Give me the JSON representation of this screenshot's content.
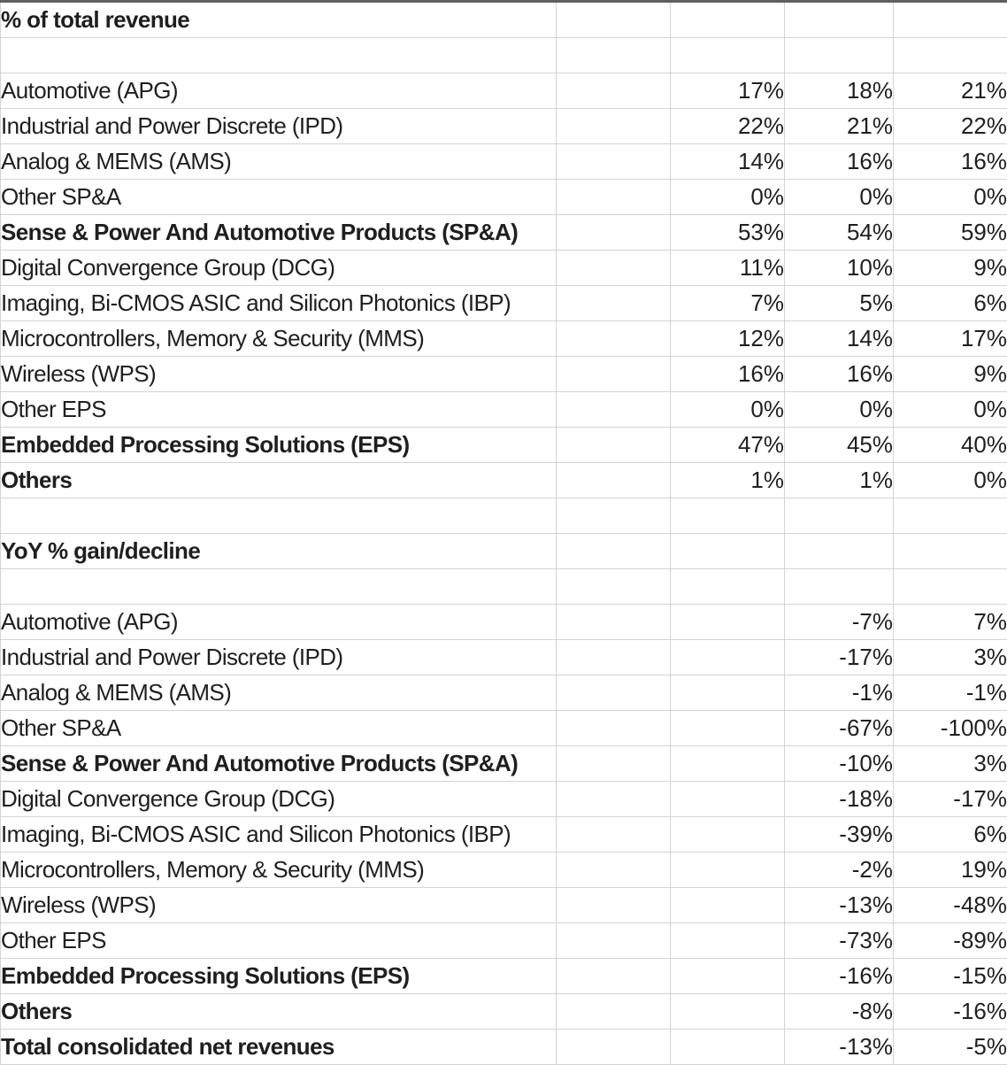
{
  "colors": {
    "text_black": "#1f1f1f",
    "negative_red": "#e5342b",
    "gridline_gray": "#d4d4d4",
    "top_edge_gray": "#5f5f5f",
    "background": "#ffffff"
  },
  "table": {
    "rows": [
      {
        "label": "% of total revenue",
        "bold": true,
        "red": false,
        "values": [
          "",
          "",
          ""
        ]
      },
      {
        "label": "",
        "bold": false,
        "red": false,
        "values": [
          "",
          "",
          ""
        ]
      },
      {
        "label": "Automotive (APG)",
        "bold": false,
        "red": false,
        "values": [
          "17%",
          "18%",
          "21%"
        ]
      },
      {
        "label": "Industrial and Power Discrete (IPD)",
        "bold": false,
        "red": false,
        "values": [
          "22%",
          "21%",
          "22%"
        ]
      },
      {
        "label": "Analog & MEMS (AMS)",
        "bold": false,
        "red": false,
        "values": [
          "14%",
          "16%",
          "16%"
        ]
      },
      {
        "label": "Other SP&A",
        "bold": false,
        "red": false,
        "values": [
          "0%",
          "0%",
          "0%"
        ]
      },
      {
        "label": "Sense & Power And Automotive Products (SP&A)",
        "bold": true,
        "red": false,
        "values": [
          "53%",
          "54%",
          "59%"
        ]
      },
      {
        "label": "Digital Convergence Group (DCG)",
        "bold": false,
        "red": false,
        "values": [
          "11%",
          "10%",
          "9%"
        ]
      },
      {
        "label": "Imaging, Bi-CMOS ASIC and Silicon Photonics (IBP)",
        "bold": false,
        "red": false,
        "values": [
          "7%",
          "5%",
          "6%"
        ]
      },
      {
        "label": "Microcontrollers, Memory & Security (MMS)",
        "bold": false,
        "red": false,
        "values": [
          "12%",
          "14%",
          "17%"
        ]
      },
      {
        "label": "Wireless (WPS)",
        "bold": false,
        "red": false,
        "values": [
          "16%",
          "16%",
          "9%"
        ]
      },
      {
        "label": "Other EPS",
        "bold": false,
        "red": false,
        "values": [
          "0%",
          "0%",
          "0%"
        ]
      },
      {
        "label": "Embedded Processing Solutions (EPS)",
        "bold": true,
        "red": false,
        "values": [
          "47%",
          "45%",
          "40%"
        ]
      },
      {
        "label": "Others",
        "bold": true,
        "red": false,
        "values": [
          "1%",
          "1%",
          "0%"
        ]
      },
      {
        "label": "",
        "bold": false,
        "red": false,
        "values": [
          "",
          "",
          ""
        ]
      },
      {
        "label": "YoY % gain/decline",
        "bold": true,
        "red": false,
        "values": [
          "",
          "",
          ""
        ]
      },
      {
        "label": "",
        "bold": false,
        "red": false,
        "values": [
          "",
          "",
          ""
        ]
      },
      {
        "label": "Automotive (APG)",
        "bold": false,
        "red": false,
        "values": [
          "",
          "-7%",
          "7%"
        ]
      },
      {
        "label": "Industrial and Power Discrete (IPD)",
        "bold": false,
        "red": false,
        "values": [
          "",
          "-17%",
          "3%"
        ]
      },
      {
        "label": "Analog & MEMS (AMS)",
        "bold": false,
        "red": true,
        "values": [
          "",
          "-1%",
          "-1%"
        ]
      },
      {
        "label": "Other SP&A",
        "bold": false,
        "red": false,
        "values": [
          "",
          "-67%",
          "-100%"
        ]
      },
      {
        "label": "Sense & Power And Automotive Products (SP&A)",
        "bold": true,
        "red": false,
        "values": [
          "",
          "-10%",
          "3%"
        ]
      },
      {
        "label": "Digital Convergence Group (DCG)",
        "bold": false,
        "red": true,
        "values": [
          "",
          "-18%",
          "-17%"
        ]
      },
      {
        "label": "Imaging, Bi-CMOS ASIC and Silicon Photonics (IBP)",
        "bold": false,
        "red": false,
        "values": [
          "",
          "-39%",
          "6%"
        ]
      },
      {
        "label": "Microcontrollers, Memory & Security (MMS)",
        "bold": false,
        "red": false,
        "values": [
          "",
          "-2%",
          "19%"
        ]
      },
      {
        "label": "Wireless (WPS)",
        "bold": false,
        "red": true,
        "values": [
          "",
          "-13%",
          "-48%"
        ]
      },
      {
        "label": "Other EPS",
        "bold": false,
        "red": false,
        "values": [
          "",
          "-73%",
          "-89%"
        ]
      },
      {
        "label": "Embedded Processing Solutions (EPS)",
        "bold": true,
        "red": true,
        "values": [
          "",
          "-16%",
          "-15%"
        ]
      },
      {
        "label": "Others",
        "bold": true,
        "red": false,
        "values": [
          "",
          "-8%",
          "-16%"
        ]
      },
      {
        "label": "Total consolidated net revenues",
        "bold": true,
        "red": false,
        "values": [
          "",
          "-13%",
          "-5%"
        ]
      }
    ]
  },
  "chart_data": {
    "type": "table",
    "sections": [
      {
        "title": "% of total revenue",
        "unit": "percent",
        "rows": [
          {
            "label": "Automotive (APG)",
            "values": [
              17,
              18,
              21
            ]
          },
          {
            "label": "Industrial and Power Discrete (IPD)",
            "values": [
              22,
              21,
              22
            ]
          },
          {
            "label": "Analog & MEMS (AMS)",
            "values": [
              14,
              16,
              16
            ]
          },
          {
            "label": "Other SP&A",
            "values": [
              0,
              0,
              0
            ]
          },
          {
            "label": "Sense & Power And Automotive Products (SP&A)",
            "values": [
              53,
              54,
              59
            ]
          },
          {
            "label": "Digital Convergence Group (DCG)",
            "values": [
              11,
              10,
              9
            ]
          },
          {
            "label": "Imaging, Bi-CMOS ASIC and Silicon Photonics (IBP)",
            "values": [
              7,
              5,
              6
            ]
          },
          {
            "label": "Microcontrollers, Memory & Security (MMS)",
            "values": [
              12,
              14,
              17
            ]
          },
          {
            "label": "Wireless (WPS)",
            "values": [
              16,
              16,
              9
            ]
          },
          {
            "label": "Other EPS",
            "values": [
              0,
              0,
              0
            ]
          },
          {
            "label": "Embedded Processing Solutions (EPS)",
            "values": [
              47,
              45,
              40
            ]
          },
          {
            "label": "Others",
            "values": [
              1,
              1,
              0
            ]
          }
        ]
      },
      {
        "title": "YoY % gain/decline",
        "unit": "percent",
        "rows": [
          {
            "label": "Automotive (APG)",
            "values": [
              null,
              -7,
              7
            ]
          },
          {
            "label": "Industrial and Power Discrete (IPD)",
            "values": [
              null,
              -17,
              3
            ]
          },
          {
            "label": "Analog & MEMS (AMS)",
            "values": [
              null,
              -1,
              -1
            ]
          },
          {
            "label": "Other SP&A",
            "values": [
              null,
              -67,
              -100
            ]
          },
          {
            "label": "Sense & Power And Automotive Products (SP&A)",
            "values": [
              null,
              -10,
              3
            ]
          },
          {
            "label": "Digital Convergence Group (DCG)",
            "values": [
              null,
              -18,
              -17
            ]
          },
          {
            "label": "Imaging, Bi-CMOS ASIC and Silicon Photonics (IBP)",
            "values": [
              null,
              -39,
              6
            ]
          },
          {
            "label": "Microcontrollers, Memory & Security (MMS)",
            "values": [
              null,
              -2,
              19
            ]
          },
          {
            "label": "Wireless (WPS)",
            "values": [
              null,
              -13,
              -48
            ]
          },
          {
            "label": "Other EPS",
            "values": [
              null,
              -73,
              -89
            ]
          },
          {
            "label": "Embedded Processing Solutions (EPS)",
            "values": [
              null,
              -16,
              -15
            ]
          },
          {
            "label": "Others",
            "values": [
              null,
              -8,
              -16
            ]
          },
          {
            "label": "Total consolidated net revenues",
            "values": [
              null,
              -13,
              -5
            ]
          }
        ]
      }
    ]
  }
}
